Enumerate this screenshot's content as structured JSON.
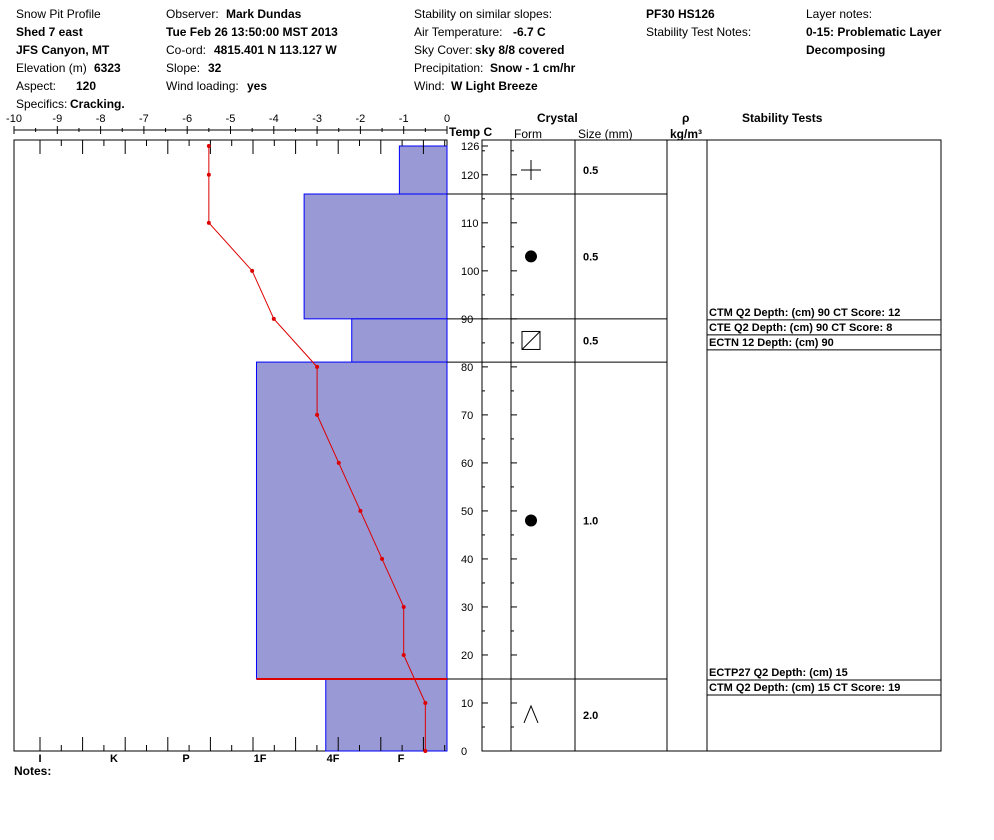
{
  "header": {
    "title": "Snow Pit Profile",
    "location": "Shed 7 east",
    "area": "JFS Canyon, MT",
    "elevation_label": "Elevation (m)",
    "elevation_value": "6323",
    "aspect_label": "Aspect:",
    "aspect_value": "120",
    "specifics_label": "Specifics:",
    "specifics_value": "Cracking.",
    "observer_label": "Observer:",
    "observer_value": "Mark Dundas",
    "datetime": "Tue Feb 26 13:50:00 MST 2013",
    "coord_label": "Co-ord:",
    "coord_value": "4815.401 N 113.127 W",
    "slope_label": "Slope:",
    "slope_value": "32",
    "wind_loading_label": "Wind loading:",
    "wind_loading_value": "yes",
    "stability_similar_label": "Stability on similar slopes:",
    "air_temp_label": "Air Temperature:",
    "air_temp_value": "-6.7 C",
    "sky_label": "Sky Cover:",
    "sky_value": "sky 8/8 covered",
    "precip_label": "Precipitation:",
    "precip_value": "Snow - 1 cm/hr",
    "wind_label": "Wind:",
    "wind_value": "W Light Breeze",
    "pf_hs": "PF30 HS126",
    "stability_notes_label": "Stability Test Notes:",
    "layer_notes_label": "Layer notes:",
    "layer_notes_1": "0-15: Problematic Layer",
    "layer_notes_2": "Decomposing"
  },
  "table_headers": {
    "temp": "Temp C",
    "crystal": "Crystal",
    "form": "Form",
    "size": "Size (mm)",
    "rho": "ρ",
    "density_unit": "kg/m³",
    "stability": "Stability Tests"
  },
  "notes_label": "Notes:",
  "colors": {
    "hardness_fill": "#9999d6",
    "layer_line": "#0000ff",
    "temp_line": "#dd0000",
    "weak_layer_line": "#dd0000",
    "grid": "#000000"
  },
  "chart_data": {
    "type": "snow-profile",
    "temp_axis": {
      "ticks": [
        -10,
        -9,
        -8,
        -7,
        -6,
        -5,
        -4,
        -3,
        -2,
        -1,
        0
      ],
      "range": [
        -10,
        0
      ]
    },
    "height_axis": {
      "label": "Temp C",
      "ticks": [
        0,
        10,
        20,
        30,
        40,
        50,
        60,
        70,
        80,
        90,
        100,
        110,
        120
      ],
      "max": 126,
      "max_label": "126"
    },
    "hardness_axis": {
      "labels": [
        "I",
        "K",
        "P",
        "1F",
        "4F",
        "F"
      ]
    },
    "temperature_profile": [
      {
        "height": 126,
        "temp": -5.5
      },
      {
        "height": 120,
        "temp": -5.5
      },
      {
        "height": 110,
        "temp": -5.5
      },
      {
        "height": 100,
        "temp": -4.5
      },
      {
        "height": 90,
        "temp": -4.0
      },
      {
        "height": 80,
        "temp": -3.0
      },
      {
        "height": 70,
        "temp": -3.0
      },
      {
        "height": 60,
        "temp": -2.5
      },
      {
        "height": 50,
        "temp": -2.0
      },
      {
        "height": 40,
        "temp": -1.5
      },
      {
        "height": 30,
        "temp": -1.0
      },
      {
        "height": 20,
        "temp": -1.0
      },
      {
        "height": 10,
        "temp": -0.5
      },
      {
        "height": 0,
        "temp": -0.5
      }
    ],
    "layers": [
      {
        "top": 126,
        "bottom": 116,
        "hardness_temp": -1.1,
        "form": "plus",
        "size": "0.5"
      },
      {
        "top": 116,
        "bottom": 90,
        "hardness_temp": -3.3,
        "form": "dot",
        "size": "0.5"
      },
      {
        "top": 90,
        "bottom": 81,
        "hardness_temp": -2.2,
        "form": "square",
        "size": "0.5"
      },
      {
        "top": 81,
        "bottom": 15,
        "hardness_temp": -4.4,
        "form": "dot",
        "size": "1.0"
      },
      {
        "top": 15,
        "bottom": 0,
        "hardness_temp": -2.8,
        "form": "caret",
        "size": "2.0"
      }
    ],
    "weak_layer_height": 15,
    "stability_tests": [
      {
        "height": 90,
        "lines": [
          "CTM Q2 Depth: (cm) 90 CT Score: 12",
          "CTE Q2 Depth: (cm) 90 CT Score: 8",
          "ECTN 12   Depth: (cm) 90"
        ]
      },
      {
        "height": 15,
        "lines": [
          "ECTP27 Q2 Depth: (cm) 15",
          "CTM Q2 Depth: (cm) 15 CT Score: 19"
        ]
      }
    ]
  }
}
